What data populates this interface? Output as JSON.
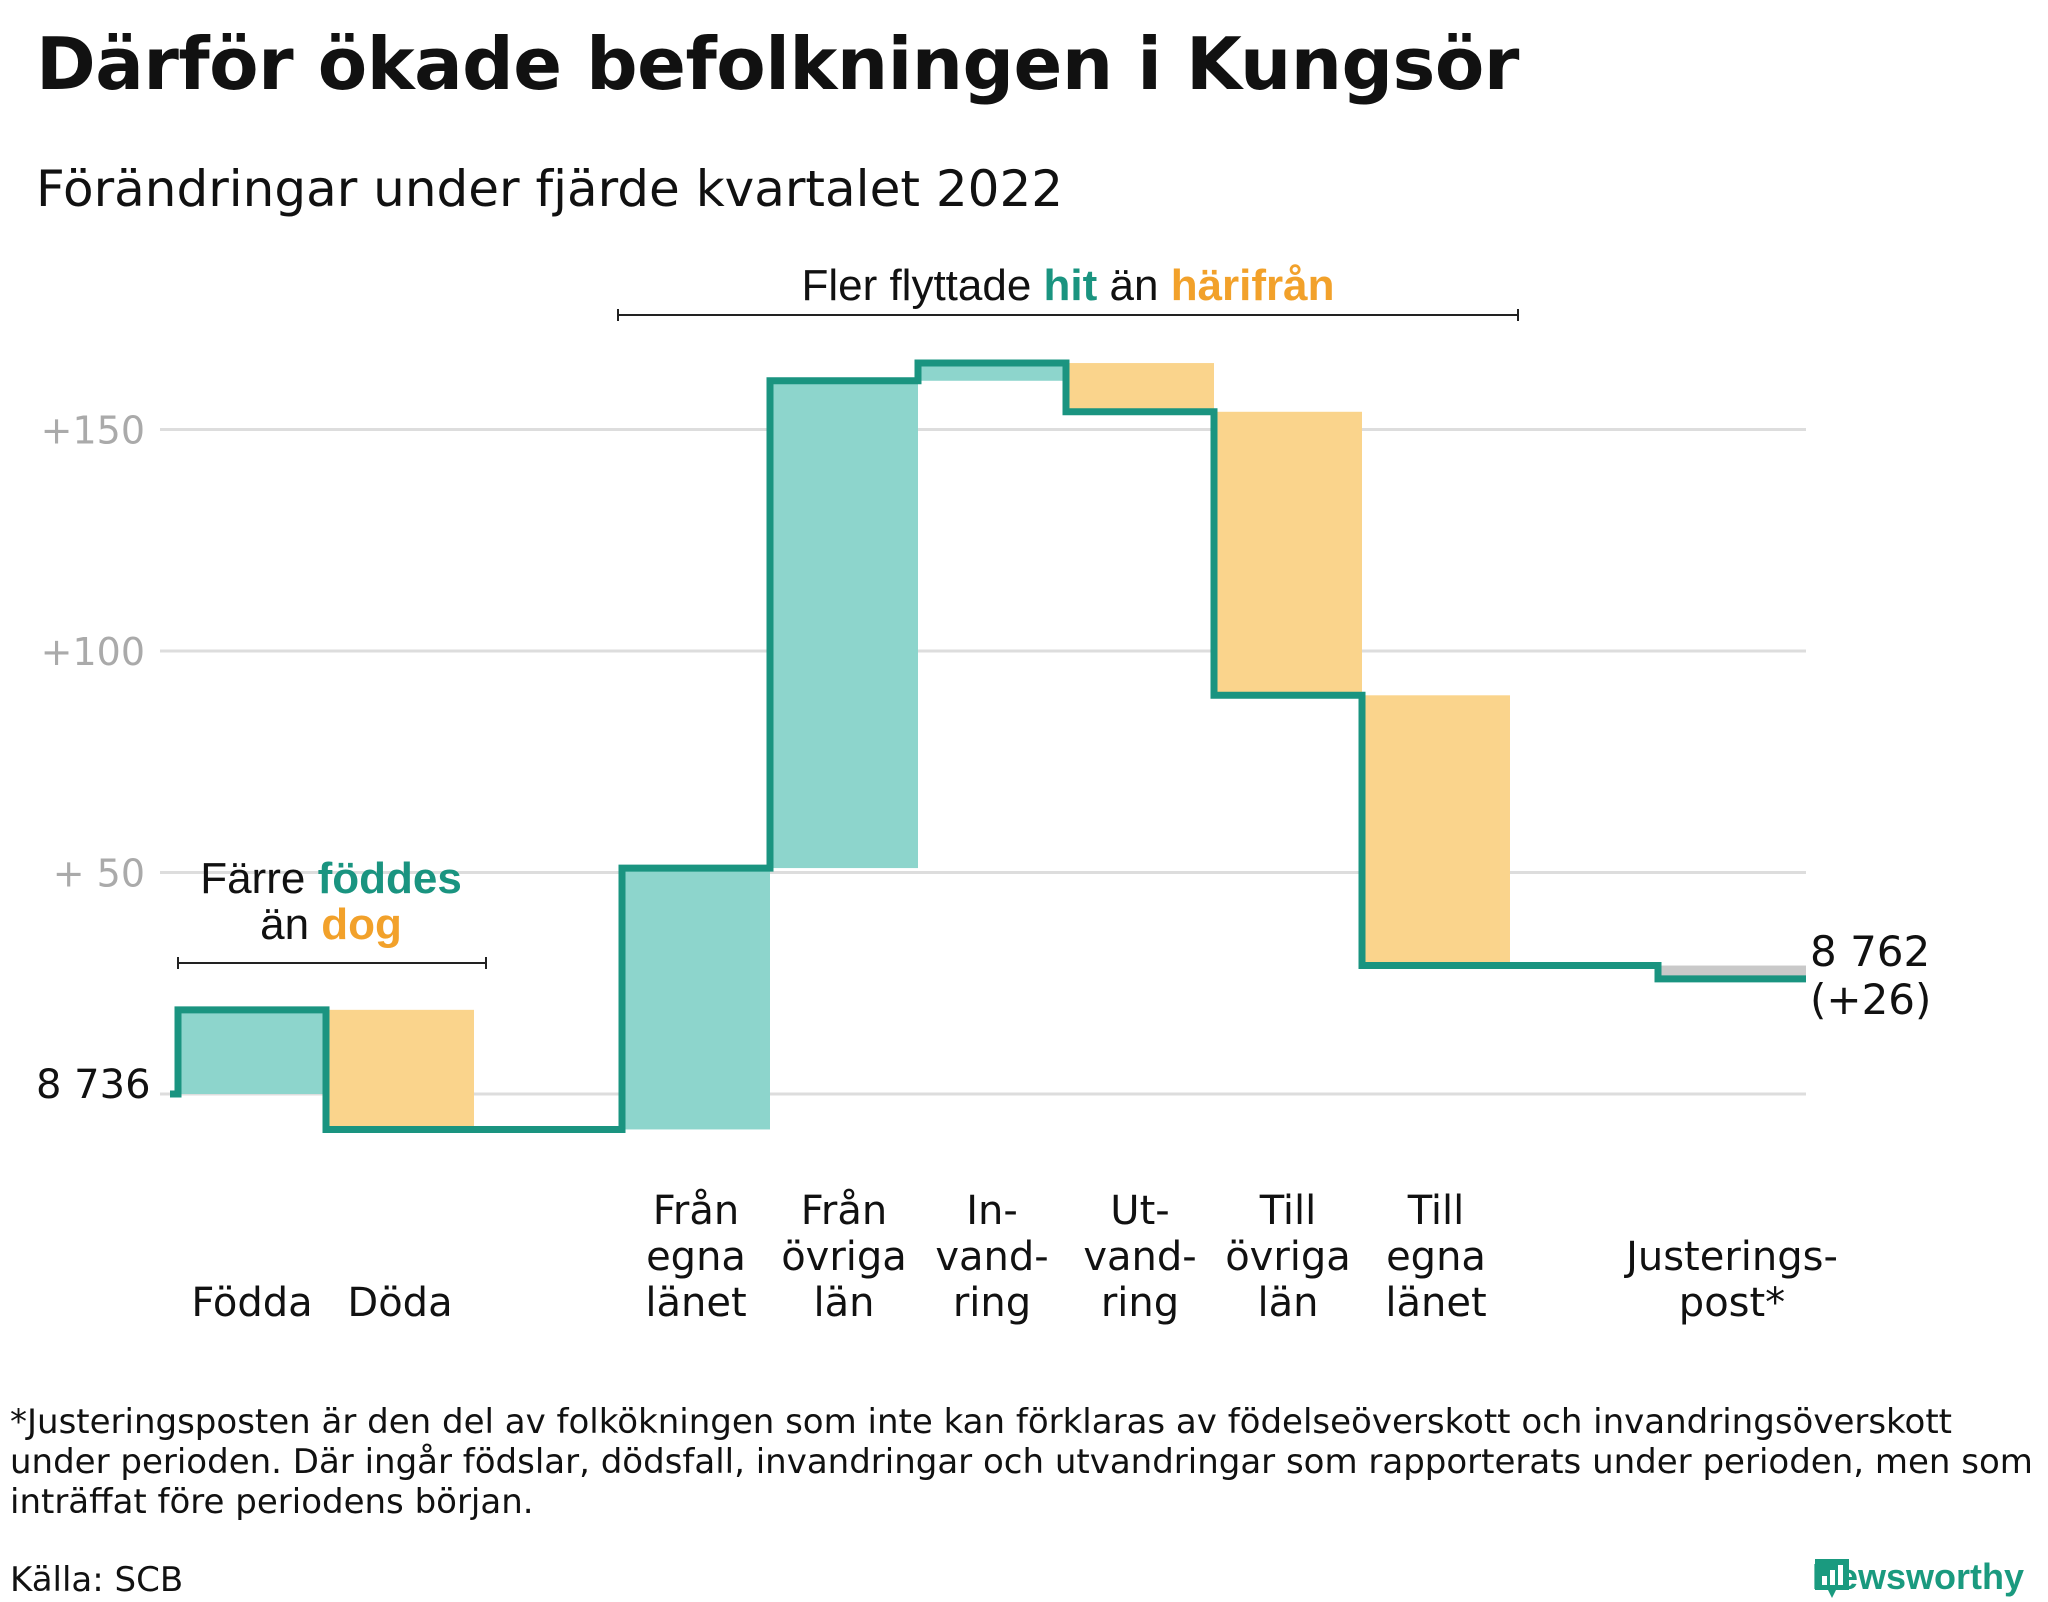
{
  "title": "Därför ökade befolkningen i Kungsör",
  "subtitle": "Förändringar under fjärde kvartalet 2022",
  "colors": {
    "line": "#1a9480",
    "positive_fill": "#8dd5cc",
    "negative_fill": "#fad48c",
    "adjustment_fill": "#c9c9c9",
    "highlight_teal": "#1a9480",
    "highlight_orange": "#f2a12a",
    "grid": "#dddddd",
    "tick_text": "#aaaaaa"
  },
  "annotations": {
    "migration": {
      "pre": "Fler flyttade ",
      "hit": "hit",
      "mid": " än ",
      "harifran": "härifrån"
    },
    "natural": {
      "pre": "Färre ",
      "foddes": "föddes",
      "line2_pre": "än ",
      "dog": "dog"
    }
  },
  "start_label": "8 736",
  "end_label_value": "8 762",
  "end_label_change": "(+26)",
  "footnote": "*Justeringsposten är den del av folkökningen som inte kan förklaras av födelseöverskott och invandringsöverskott under perioden. Där ingår födslar, dödsfall, invandringar och utvandringar som rapporterats under perioden, men som inträffat före periodens början.",
  "source": "Källa: SCB",
  "brand": "Newsworthy",
  "chart_data": {
    "type": "bar",
    "subtype": "waterfall",
    "baseline": 8736,
    "end_value": 8762,
    "y_ticks": [
      {
        "value": 0,
        "label": ""
      },
      {
        "value": 50,
        "label": "+ 50"
      },
      {
        "value": 100,
        "label": "+100"
      },
      {
        "value": 150,
        "label": "+150"
      }
    ],
    "ylim": [
      -10,
      155
    ],
    "grid": true,
    "steps": [
      {
        "label_lines": [
          "Födda"
        ],
        "start": 0,
        "end": 19,
        "kind": "positive"
      },
      {
        "label_lines": [
          "Döda"
        ],
        "start": 19,
        "end": -8,
        "kind": "negative"
      },
      {
        "label_lines": [
          "Från",
          "egna",
          "länet"
        ],
        "start": -8,
        "end": 51,
        "kind": "positive"
      },
      {
        "label_lines": [
          "Från",
          "övriga",
          "län"
        ],
        "start": 51,
        "end": 161,
        "kind": "positive"
      },
      {
        "label_lines": [
          "In-",
          "vand-",
          "ring"
        ],
        "start": 161,
        "end": 165,
        "kind": "positive"
      },
      {
        "label_lines": [
          "Ut-",
          "vand-",
          "ring"
        ],
        "start": 165,
        "end": 154,
        "kind": "negative"
      },
      {
        "label_lines": [
          "Till",
          "övriga",
          "län"
        ],
        "start": 154,
        "end": 90,
        "kind": "negative"
      },
      {
        "label_lines": [
          "Till",
          "egna",
          "länet"
        ],
        "start": 90,
        "end": 29,
        "kind": "negative"
      },
      {
        "label_lines": [
          "Justerings-",
          "post*"
        ],
        "start": 29,
        "end": 26,
        "kind": "adjustment"
      }
    ]
  }
}
